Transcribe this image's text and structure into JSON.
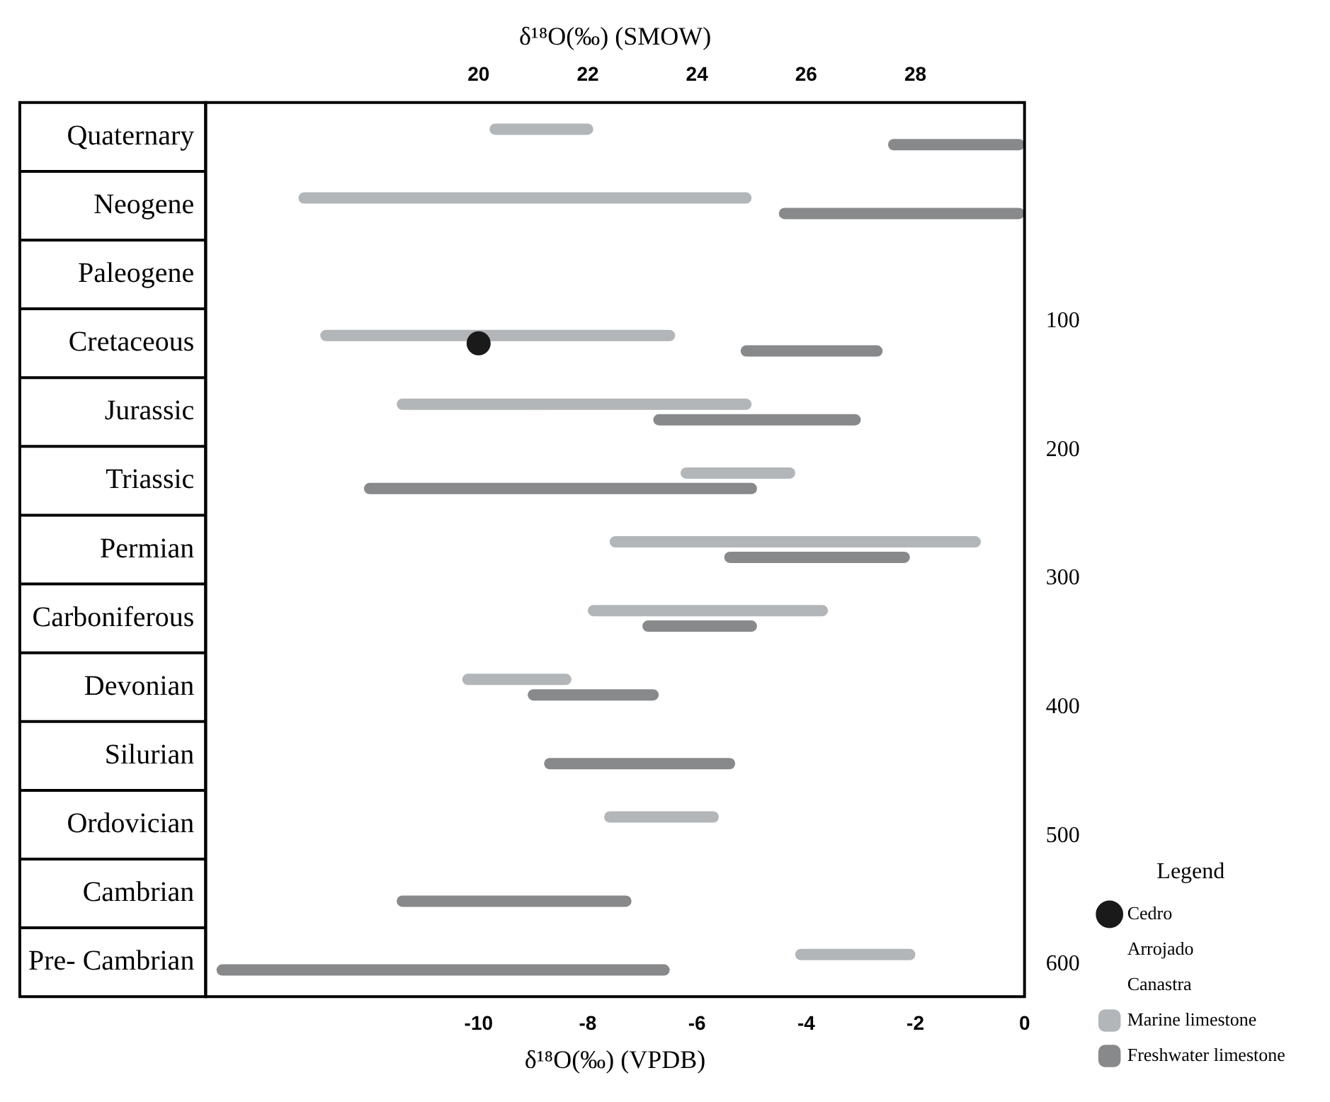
{
  "chart_data": {
    "type": "bar",
    "orientation": "horizontal",
    "xlabel": "δ¹⁸O(‰) (VPDB)",
    "x2label": "δ¹⁸O(‰) (SMOW)",
    "legend_title": "Legend",
    "categories": [
      "Quaternary",
      "Neogene",
      "Paleogene",
      "Cretaceous",
      "Jurassic",
      "Triassic",
      "Permian",
      "Carboniferous",
      "Devonian",
      "Silurian",
      "Ordovician",
      "Cambrian",
      "Pre- Cambrian"
    ],
    "xlim": [
      -15,
      0
    ],
    "xticks": [
      -10,
      -8,
      -6,
      -4,
      -2,
      0
    ],
    "x2lim": [
      15,
      30
    ],
    "x2ticks": [
      20,
      22,
      24,
      26,
      28
    ],
    "y2lim": [
      625,
      -70
    ],
    "y2ticks": [
      100,
      200,
      300,
      400,
      500,
      600
    ],
    "grid": false,
    "legend": "bottom right",
    "series": [
      {
        "name": "Cedro",
        "type": "scatter",
        "color": "#1a1a1a",
        "x": [
          "Cretaceous"
        ],
        "values": [
          -10
        ]
      },
      {
        "name": "Arrojado",
        "type": "scatter",
        "values": [
          null,
          null,
          null,
          null,
          null,
          null,
          null,
          null,
          null,
          null,
          null,
          null,
          null
        ]
      },
      {
        "name": "Canastra",
        "type": "scatter",
        "values": [
          null,
          null,
          null,
          null,
          null,
          null,
          null,
          null,
          null,
          null,
          null,
          null,
          null
        ]
      },
      {
        "name": "Marine limestone",
        "color": "#b3b6b8",
        "base": [
          -9.8,
          -13.3,
          null,
          -12.9,
          -11.5,
          -6.3,
          -7.6,
          -8.0,
          -10.3,
          null,
          -7.7,
          null,
          -4.2
        ],
        "values": [
          1.9,
          8.3,
          null,
          6.5,
          6.5,
          2.1,
          6.8,
          4.4,
          2.0,
          null,
          2.1,
          null,
          2.2
        ]
      },
      {
        "name": "Freshwater limestone",
        "color": "#87898b",
        "base": [
          -2.5,
          -4.5,
          null,
          -5.2,
          -6.8,
          -12.1,
          -5.5,
          -7.0,
          -9.1,
          -8.8,
          null,
          -11.5,
          -14.8
        ],
        "values": [
          2.5,
          4.5,
          null,
          2.6,
          3.8,
          7.2,
          3.4,
          2.1,
          2.4,
          3.5,
          null,
          4.3,
          8.3
        ]
      }
    ]
  }
}
